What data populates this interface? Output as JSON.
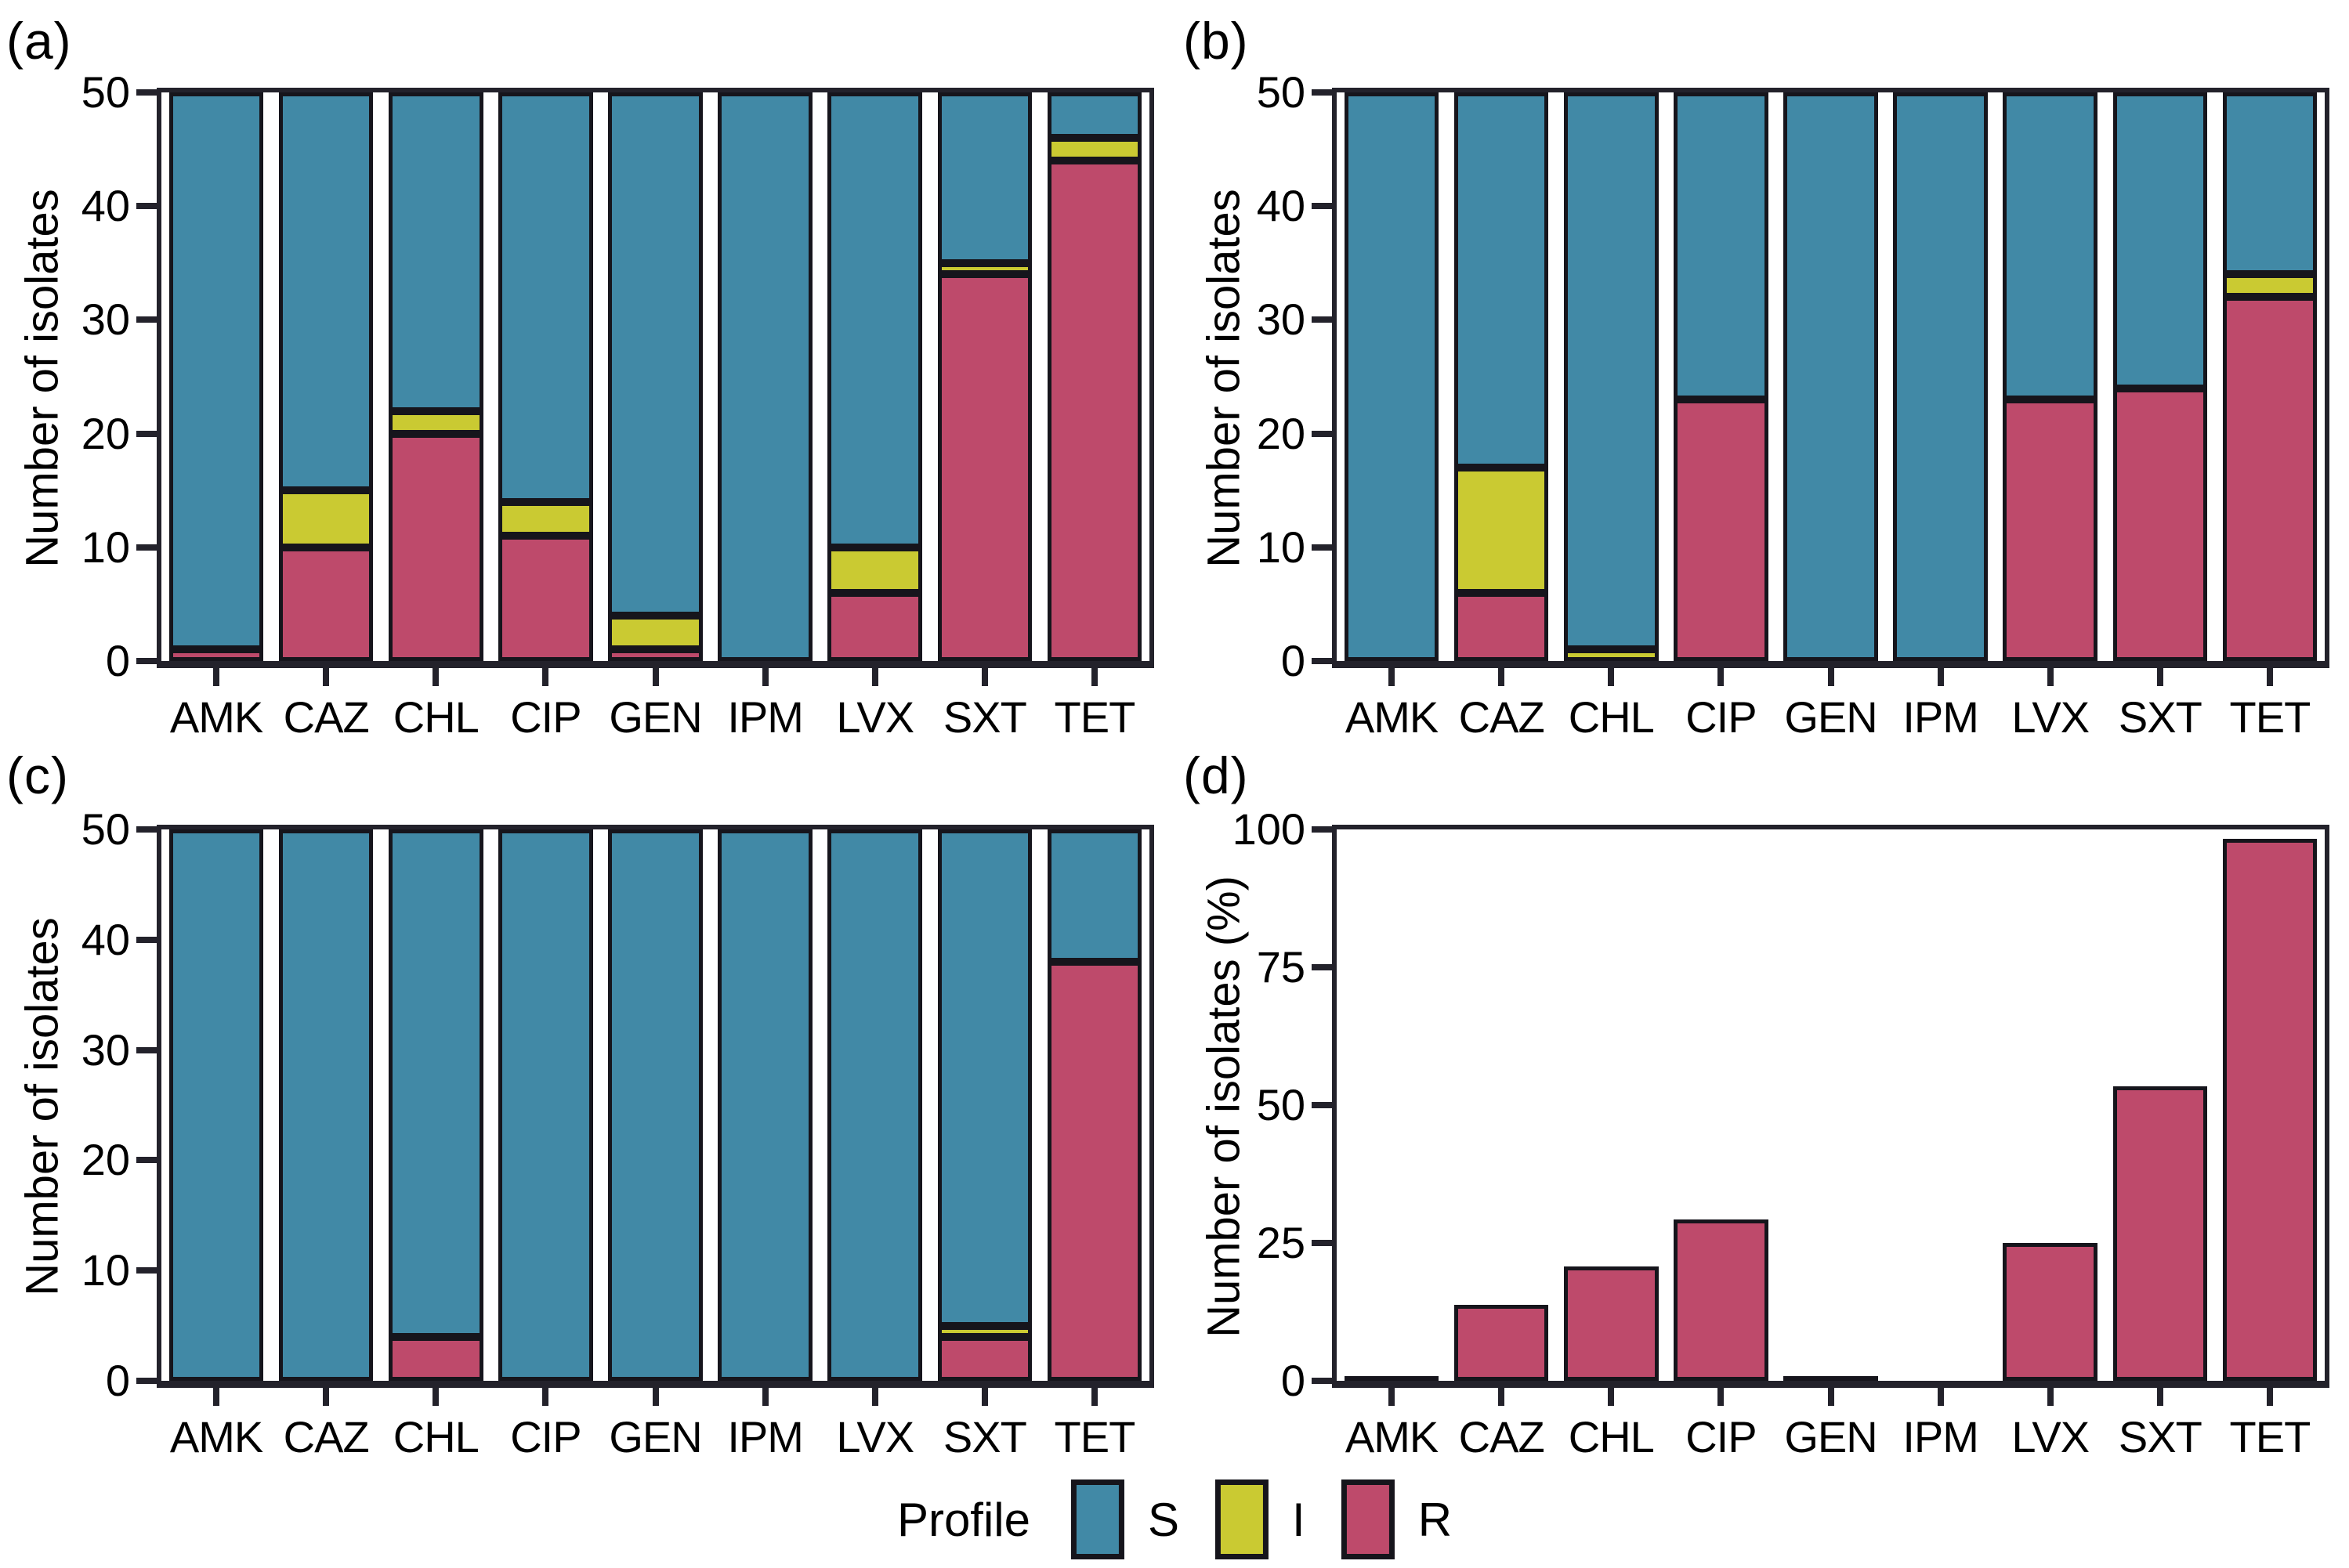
{
  "figure": {
    "background": "#FFFFFF",
    "ink_color": "#16151C",
    "frame_color": "#23222B",
    "colors": {
      "S": "#4189A6",
      "I": "#CACA32",
      "R": "#BE4A6B"
    },
    "legend": {
      "title": "Profile",
      "items": [
        {
          "label": "S",
          "color": "#4189A6"
        },
        {
          "label": "I",
          "color": "#CACA32"
        },
        {
          "label": "R",
          "color": "#BE4A6B"
        }
      ]
    }
  },
  "chart_data": [
    {
      "panel_label": "(a)",
      "type": "stacked-bar",
      "ylabel": "Number of isolates",
      "ylim": [
        0,
        50
      ],
      "yticks": [
        "0",
        "10",
        "20",
        "30",
        "40",
        "50"
      ],
      "categories": [
        "AMK",
        "CAZ",
        "CHL",
        "CIP",
        "GEN",
        "IPM",
        "LVX",
        "SXT",
        "TET"
      ],
      "stack_order_bottom_to_top": [
        "R",
        "I",
        "S"
      ],
      "grid": "off",
      "series": [
        {
          "name": "S",
          "values": [
            49,
            35,
            28,
            36,
            46,
            50,
            40,
            15,
            4
          ]
        },
        {
          "name": "I",
          "values": [
            0,
            5,
            2,
            3,
            3,
            0,
            4,
            1,
            2
          ]
        },
        {
          "name": "R",
          "values": [
            1,
            10,
            20,
            11,
            1,
            0,
            6,
            34,
            44
          ]
        }
      ]
    },
    {
      "panel_label": "(b)",
      "type": "stacked-bar",
      "ylabel": "Number of isolates",
      "ylim": [
        0,
        50
      ],
      "yticks": [
        "0",
        "10",
        "20",
        "30",
        "40",
        "50"
      ],
      "categories": [
        "AMK",
        "CAZ",
        "CHL",
        "CIP",
        "GEN",
        "IPM",
        "LVX",
        "SXT",
        "TET"
      ],
      "stack_order_bottom_to_top": [
        "R",
        "I",
        "S"
      ],
      "grid": "off",
      "series": [
        {
          "name": "S",
          "values": [
            50,
            33,
            49,
            27,
            50,
            50,
            27,
            26,
            16
          ]
        },
        {
          "name": "I",
          "values": [
            0,
            11,
            1,
            0,
            0,
            0,
            0,
            0,
            2
          ]
        },
        {
          "name": "R",
          "values": [
            0,
            6,
            0,
            23,
            0,
            0,
            23,
            24,
            32
          ]
        }
      ]
    },
    {
      "panel_label": "(c)",
      "type": "stacked-bar",
      "ylabel": "Number of isolates",
      "ylim": [
        0,
        50
      ],
      "yticks": [
        "0",
        "10",
        "20",
        "30",
        "40",
        "50"
      ],
      "categories": [
        "AMK",
        "CAZ",
        "CHL",
        "CIP",
        "GEN",
        "IPM",
        "LVX",
        "SXT",
        "TET"
      ],
      "stack_order_bottom_to_top": [
        "R",
        "I",
        "S"
      ],
      "grid": "off",
      "series": [
        {
          "name": "S",
          "values": [
            50,
            50,
            46,
            50,
            50,
            50,
            50,
            45,
            12
          ]
        },
        {
          "name": "I",
          "values": [
            0,
            0,
            0,
            0,
            0,
            0,
            0,
            1,
            0
          ]
        },
        {
          "name": "R",
          "values": [
            0,
            0,
            4,
            0,
            0,
            0,
            0,
            4,
            38
          ]
        }
      ]
    },
    {
      "panel_label": "(d)",
      "type": "bar",
      "ylabel": "Number of isolates (%)",
      "ylim": [
        0,
        100
      ],
      "yticks": [
        "0",
        "25",
        "50",
        "75",
        "100"
      ],
      "categories": [
        "AMK",
        "CAZ",
        "CHL",
        "CIP",
        "GEN",
        "IPM",
        "LVX",
        "SXT",
        "TET"
      ],
      "grid": "off",
      "series": [
        {
          "name": "R",
          "values": [
            0.9,
            13.8,
            20.7,
            29.3,
            0.9,
            0,
            25,
            53.4,
            98.3
          ]
        }
      ]
    }
  ]
}
